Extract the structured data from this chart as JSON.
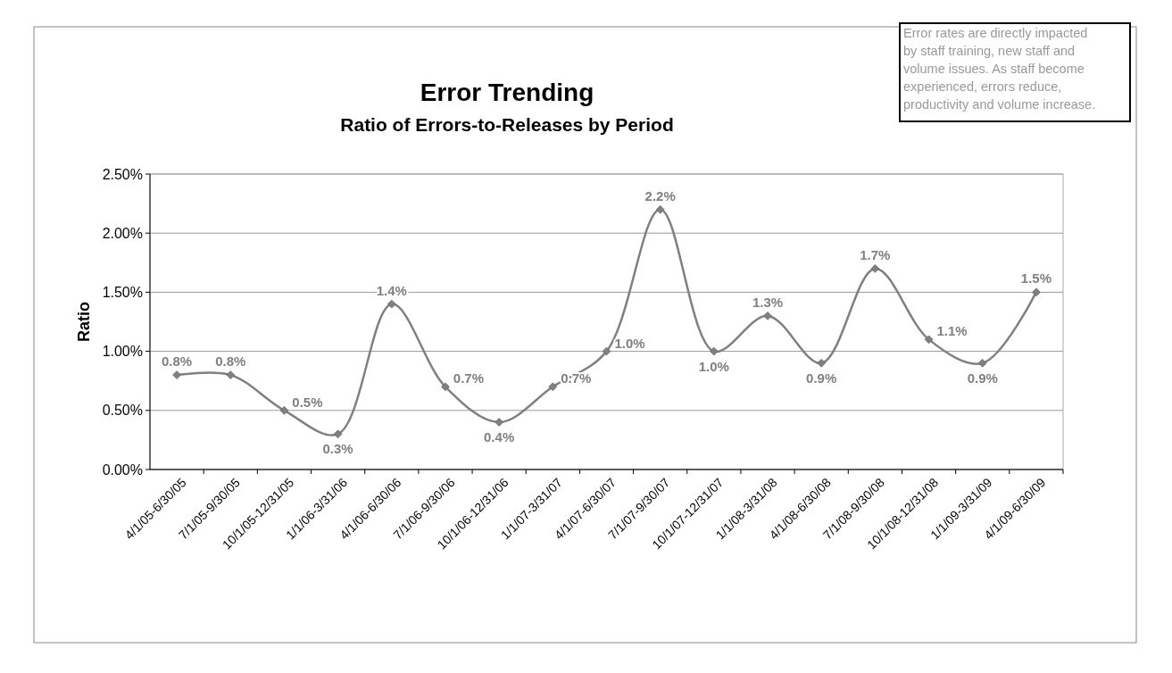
{
  "chart_data": {
    "type": "line",
    "title": "Error Trending",
    "subtitle": "Ratio of Errors-to-Releases by Period",
    "ylabel": "Ratio",
    "categories": [
      "4/1/05-6/30/05",
      "7/1/05-9/30/05",
      "10/1/05-12/31/05",
      "1/1/06-3/31/06",
      "4/1/06-6/30/06",
      "7/1/06-9/30/06",
      "10/1/06-12/31/06",
      "1/1/07-3/31/07",
      "4/1/07-6/30/07",
      "7/1/07-9/30/07",
      "10/1/07-12/31/07",
      "1/1/08-3/31/08",
      "4/1/08-6/30/08",
      "7/1/08-9/30/08",
      "10/1/08-12/31/08",
      "1/1/09-3/31/09",
      "4/1/09-6/30/09"
    ],
    "series": [
      {
        "color": "#808080",
        "values": [
          0.8,
          0.8,
          0.5,
          0.3,
          1.4,
          0.7,
          0.4,
          0.7,
          1.0,
          2.2,
          1.0,
          1.3,
          0.9,
          1.7,
          1.1,
          0.9,
          1.5
        ],
        "value_labels": [
          "0.8%",
          "0.8%",
          "0.5%",
          "0.3%",
          "1.4%",
          "0.7%",
          "0.4%",
          "0.7%",
          "1.0%",
          "2.2%",
          "1.0%",
          "1.3%",
          "0.9%",
          "1.7%",
          "1.1%",
          "0.9%",
          "1.5%"
        ]
      }
    ],
    "ylim": [
      0,
      2.5
    ],
    "yticks": [
      {
        "value": 0,
        "label": "0.00%"
      },
      {
        "value": 0.5,
        "label": "0.50%"
      },
      {
        "value": 1,
        "label": "1.00%"
      },
      {
        "value": 1.5,
        "label": "1.50%"
      },
      {
        "value": 2,
        "label": "2.00%"
      },
      {
        "value": 2.5,
        "label": "2.50%"
      }
    ],
    "grid": "y",
    "marker": "diamond",
    "line_style": "solid",
    "annotations": [
      "Error rates are directly impacted by staff training, new staff and volume issues. As staff become experienced, errors reduce, productivity and volume increase."
    ]
  }
}
